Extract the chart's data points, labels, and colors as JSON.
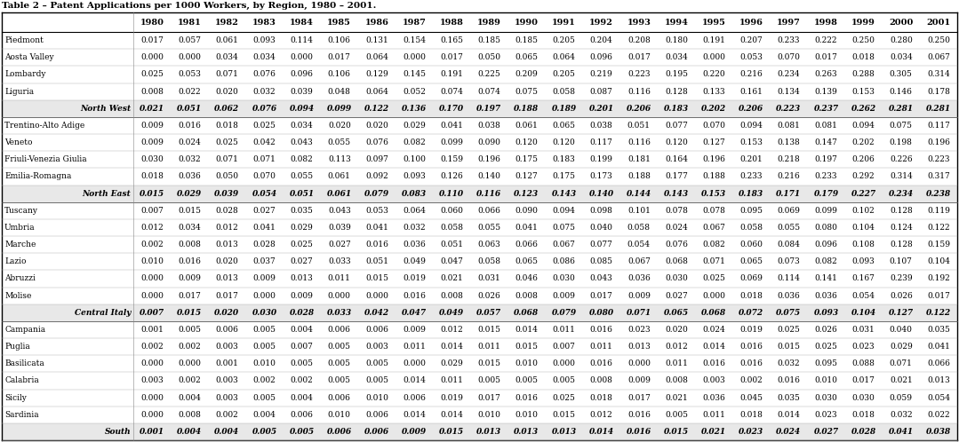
{
  "title": "Table 2 – Patent Applications per 1000 Workers, by Region, 1980 – 2001.",
  "years": [
    "1980",
    "1981",
    "1982",
    "1983",
    "1984",
    "1985",
    "1986",
    "1987",
    "1988",
    "1989",
    "1990",
    "1991",
    "1992",
    "1993",
    "1994",
    "1995",
    "1996",
    "1997",
    "1998",
    "1999",
    "2000",
    "2001"
  ],
  "rows": [
    {
      "label": "Piedmont",
      "bold": false,
      "italic": false,
      "indent": false,
      "values": [
        0.017,
        0.057,
        0.061,
        0.093,
        0.114,
        0.106,
        0.131,
        0.154,
        0.165,
        0.185,
        0.185,
        0.205,
        0.204,
        0.208,
        0.18,
        0.191,
        0.207,
        0.233,
        0.222,
        0.25,
        0.28,
        0.25
      ]
    },
    {
      "label": "Aosta Valley",
      "bold": false,
      "italic": false,
      "indent": false,
      "values": [
        0.0,
        0.0,
        0.034,
        0.034,
        0.0,
        0.017,
        0.064,
        0.0,
        0.017,
        0.05,
        0.065,
        0.064,
        0.096,
        0.017,
        0.034,
        0.0,
        0.053,
        0.07,
        0.017,
        0.018,
        0.034,
        0.067
      ]
    },
    {
      "label": "Lombardy",
      "bold": false,
      "italic": false,
      "indent": false,
      "values": [
        0.025,
        0.053,
        0.071,
        0.076,
        0.096,
        0.106,
        0.129,
        0.145,
        0.191,
        0.225,
        0.209,
        0.205,
        0.219,
        0.223,
        0.195,
        0.22,
        0.216,
        0.234,
        0.263,
        0.288,
        0.305,
        0.314
      ]
    },
    {
      "label": "Liguria",
      "bold": false,
      "italic": false,
      "indent": false,
      "values": [
        0.008,
        0.022,
        0.02,
        0.032,
        0.039,
        0.048,
        0.064,
        0.052,
        0.074,
        0.074,
        0.075,
        0.058,
        0.087,
        0.116,
        0.128,
        0.133,
        0.161,
        0.134,
        0.139,
        0.153,
        0.146,
        0.178
      ]
    },
    {
      "label": "North West",
      "bold": true,
      "italic": true,
      "indent": true,
      "values": [
        0.021,
        0.051,
        0.062,
        0.076,
        0.094,
        0.099,
        0.122,
        0.136,
        0.17,
        0.197,
        0.188,
        0.189,
        0.201,
        0.206,
        0.183,
        0.202,
        0.206,
        0.223,
        0.237,
        0.262,
        0.281,
        0.281
      ]
    },
    {
      "label": "Trentino-Alto Adige",
      "bold": false,
      "italic": false,
      "indent": false,
      "values": [
        0.009,
        0.016,
        0.018,
        0.025,
        0.034,
        0.02,
        0.02,
        0.029,
        0.041,
        0.038,
        0.061,
        0.065,
        0.038,
        0.051,
        0.077,
        0.07,
        0.094,
        0.081,
        0.081,
        0.094,
        0.075,
        0.117
      ]
    },
    {
      "label": "Veneto",
      "bold": false,
      "italic": false,
      "indent": false,
      "values": [
        0.009,
        0.024,
        0.025,
        0.042,
        0.043,
        0.055,
        0.076,
        0.082,
        0.099,
        0.09,
        0.12,
        0.12,
        0.117,
        0.116,
        0.12,
        0.127,
        0.153,
        0.138,
        0.147,
        0.202,
        0.198,
        0.196
      ]
    },
    {
      "label": "Friuli-Venezia Giulia",
      "bold": false,
      "italic": false,
      "indent": false,
      "values": [
        0.03,
        0.032,
        0.071,
        0.071,
        0.082,
        0.113,
        0.097,
        0.1,
        0.159,
        0.196,
        0.175,
        0.183,
        0.199,
        0.181,
        0.164,
        0.196,
        0.201,
        0.218,
        0.197,
        0.206,
        0.226,
        0.223
      ]
    },
    {
      "label": "Emilia-Romagna",
      "bold": false,
      "italic": false,
      "indent": false,
      "values": [
        0.018,
        0.036,
        0.05,
        0.07,
        0.055,
        0.061,
        0.092,
        0.093,
        0.126,
        0.14,
        0.127,
        0.175,
        0.173,
        0.188,
        0.177,
        0.188,
        0.233,
        0.216,
        0.233,
        0.292,
        0.314,
        0.317
      ]
    },
    {
      "label": "North East",
      "bold": true,
      "italic": true,
      "indent": true,
      "values": [
        0.015,
        0.029,
        0.039,
        0.054,
        0.051,
        0.061,
        0.079,
        0.083,
        0.11,
        0.116,
        0.123,
        0.143,
        0.14,
        0.144,
        0.143,
        0.153,
        0.183,
        0.171,
        0.179,
        0.227,
        0.234,
        0.238
      ]
    },
    {
      "label": "Tuscany",
      "bold": false,
      "italic": false,
      "indent": false,
      "values": [
        0.007,
        0.015,
        0.028,
        0.027,
        0.035,
        0.043,
        0.053,
        0.064,
        0.06,
        0.066,
        0.09,
        0.094,
        0.098,
        0.101,
        0.078,
        0.078,
        0.095,
        0.069,
        0.099,
        0.102,
        0.128,
        0.119
      ]
    },
    {
      "label": "Umbria",
      "bold": false,
      "italic": false,
      "indent": false,
      "values": [
        0.012,
        0.034,
        0.012,
        0.041,
        0.029,
        0.039,
        0.041,
        0.032,
        0.058,
        0.055,
        0.041,
        0.075,
        0.04,
        0.058,
        0.024,
        0.067,
        0.058,
        0.055,
        0.08,
        0.104,
        0.124,
        0.122
      ]
    },
    {
      "label": "Marche",
      "bold": false,
      "italic": false,
      "indent": false,
      "values": [
        0.002,
        0.008,
        0.013,
        0.028,
        0.025,
        0.027,
        0.016,
        0.036,
        0.051,
        0.063,
        0.066,
        0.067,
        0.077,
        0.054,
        0.076,
        0.082,
        0.06,
        0.084,
        0.096,
        0.108,
        0.128,
        0.159
      ]
    },
    {
      "label": "Lazio",
      "bold": false,
      "italic": false,
      "indent": false,
      "values": [
        0.01,
        0.016,
        0.02,
        0.037,
        0.027,
        0.033,
        0.051,
        0.049,
        0.047,
        0.058,
        0.065,
        0.086,
        0.085,
        0.067,
        0.068,
        0.071,
        0.065,
        0.073,
        0.082,
        0.093,
        0.107,
        0.104
      ]
    },
    {
      "label": "Abruzzi",
      "bold": false,
      "italic": false,
      "indent": false,
      "values": [
        0.0,
        0.009,
        0.013,
        0.009,
        0.013,
        0.011,
        0.015,
        0.019,
        0.021,
        0.031,
        0.046,
        0.03,
        0.043,
        0.036,
        0.03,
        0.025,
        0.069,
        0.114,
        0.141,
        0.167,
        0.239,
        0.192
      ]
    },
    {
      "label": "Molise",
      "bold": false,
      "italic": false,
      "indent": false,
      "values": [
        0.0,
        0.017,
        0.017,
        0.0,
        0.009,
        0.0,
        0.0,
        0.016,
        0.008,
        0.026,
        0.008,
        0.009,
        0.017,
        0.009,
        0.027,
        0.0,
        0.018,
        0.036,
        0.036,
        0.054,
        0.026,
        0.017
      ]
    },
    {
      "label": "Central Italy",
      "bold": true,
      "italic": true,
      "indent": true,
      "values": [
        0.007,
        0.015,
        0.02,
        0.03,
        0.028,
        0.033,
        0.042,
        0.047,
        0.049,
        0.057,
        0.068,
        0.079,
        0.08,
        0.071,
        0.065,
        0.068,
        0.072,
        0.075,
        0.093,
        0.104,
        0.127,
        0.122
      ]
    },
    {
      "label": "Campania",
      "bold": false,
      "italic": false,
      "indent": false,
      "values": [
        0.001,
        0.005,
        0.006,
        0.005,
        0.004,
        0.006,
        0.006,
        0.009,
        0.012,
        0.015,
        0.014,
        0.011,
        0.016,
        0.023,
        0.02,
        0.024,
        0.019,
        0.025,
        0.026,
        0.031,
        0.04,
        0.035
      ]
    },
    {
      "label": "Puglia",
      "bold": false,
      "italic": false,
      "indent": false,
      "values": [
        0.002,
        0.002,
        0.003,
        0.005,
        0.007,
        0.005,
        0.003,
        0.011,
        0.014,
        0.011,
        0.015,
        0.007,
        0.011,
        0.013,
        0.012,
        0.014,
        0.016,
        0.015,
        0.025,
        0.023,
        0.029,
        0.041
      ]
    },
    {
      "label": "Basilicata",
      "bold": false,
      "italic": false,
      "indent": false,
      "values": [
        0.0,
        0.0,
        0.001,
        0.01,
        0.005,
        0.005,
        0.005,
        0.0,
        0.029,
        0.015,
        0.01,
        0.0,
        0.016,
        0.0,
        0.011,
        0.016,
        0.016,
        0.032,
        0.095,
        0.088,
        0.071,
        0.066
      ]
    },
    {
      "label": "Calabria",
      "bold": false,
      "italic": false,
      "indent": false,
      "values": [
        0.003,
        0.002,
        0.003,
        0.002,
        0.002,
        0.005,
        0.005,
        0.014,
        0.011,
        0.005,
        0.005,
        0.005,
        0.008,
        0.009,
        0.008,
        0.003,
        0.002,
        0.016,
        0.01,
        0.017,
        0.021,
        0.013
      ]
    },
    {
      "label": "Sicily",
      "bold": false,
      "italic": false,
      "indent": false,
      "values": [
        0.0,
        0.004,
        0.003,
        0.005,
        0.004,
        0.006,
        0.01,
        0.006,
        0.019,
        0.017,
        0.016,
        0.025,
        0.018,
        0.017,
        0.021,
        0.036,
        0.045,
        0.035,
        0.03,
        0.03,
        0.059,
        0.054
      ]
    },
    {
      "label": "Sardinia",
      "bold": false,
      "italic": false,
      "indent": false,
      "values": [
        0.0,
        0.008,
        0.002,
        0.004,
        0.006,
        0.01,
        0.006,
        0.014,
        0.014,
        0.01,
        0.01,
        0.015,
        0.012,
        0.016,
        0.005,
        0.011,
        0.018,
        0.014,
        0.023,
        0.018,
        0.032,
        0.022
      ]
    },
    {
      "label": "South",
      "bold": true,
      "italic": true,
      "indent": true,
      "values": [
        0.001,
        0.004,
        0.004,
        0.005,
        0.005,
        0.006,
        0.006,
        0.009,
        0.015,
        0.013,
        0.013,
        0.013,
        0.014,
        0.016,
        0.015,
        0.021,
        0.023,
        0.024,
        0.027,
        0.028,
        0.041,
        0.038
      ]
    }
  ],
  "title_fontsize": 7.5,
  "header_fontsize": 7.0,
  "cell_fontsize": 6.5,
  "label_fontsize": 6.5,
  "font_family": "serif"
}
